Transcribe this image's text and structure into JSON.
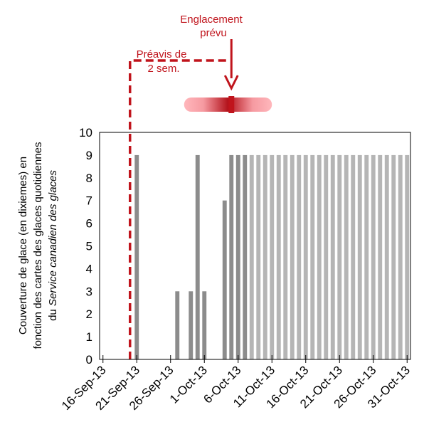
{
  "chart_data": {
    "type": "bar",
    "ylabel": {
      "line1": "Couverture de glace (en dixiemes) en",
      "line2": "fonction des cartes des glaces quotidiennes",
      "line3_prefix": "du ",
      "line3_italic": "Service canadien des glaces"
    },
    "ylim": [
      0,
      10
    ],
    "yticks": [
      "0",
      "1",
      "2",
      "3",
      "4",
      "5",
      "6",
      "7",
      "8",
      "9",
      "10"
    ],
    "x_start": "16-Sep-13",
    "x_end": "31-Oct-13",
    "xtick_labels": [
      "16-Sep-13",
      "21-Sep-13",
      "26-Sep-13",
      "1-Oct-13",
      "6-Oct-13",
      "11-Oct-13",
      "16-Oct-13",
      "21-Oct-13",
      "26-Oct-13",
      "31-Oct-13"
    ],
    "bars": [
      {
        "date": "21-Sep-13",
        "value": 9,
        "shade": "observed"
      },
      {
        "date": "27-Sep-13",
        "value": 3,
        "shade": "observed"
      },
      {
        "date": "29-Sep-13",
        "value": 3,
        "shade": "observed"
      },
      {
        "date": "30-Sep-13",
        "value": 9,
        "shade": "observed"
      },
      {
        "date": "1-Oct-13",
        "value": 3,
        "shade": "observed"
      },
      {
        "date": "4-Oct-13",
        "value": 7,
        "shade": "observed"
      },
      {
        "date": "5-Oct-13",
        "value": 9,
        "shade": "observed"
      },
      {
        "date": "6-Oct-13",
        "value": 9,
        "shade": "observed"
      },
      {
        "date": "7-Oct-13",
        "value": 9,
        "shade": "observed"
      },
      {
        "date": "8-Oct-13",
        "value": 9,
        "shade": "light"
      },
      {
        "date": "9-Oct-13",
        "value": 9,
        "shade": "light"
      },
      {
        "date": "10-Oct-13",
        "value": 9,
        "shade": "light"
      },
      {
        "date": "11-Oct-13",
        "value": 9,
        "shade": "light"
      },
      {
        "date": "12-Oct-13",
        "value": 9,
        "shade": "light"
      },
      {
        "date": "13-Oct-13",
        "value": 9,
        "shade": "light"
      },
      {
        "date": "14-Oct-13",
        "value": 9,
        "shade": "light"
      },
      {
        "date": "15-Oct-13",
        "value": 9,
        "shade": "light"
      },
      {
        "date": "16-Oct-13",
        "value": 9,
        "shade": "light"
      },
      {
        "date": "17-Oct-13",
        "value": 9,
        "shade": "light"
      },
      {
        "date": "18-Oct-13",
        "value": 9,
        "shade": "light"
      },
      {
        "date": "19-Oct-13",
        "value": 9,
        "shade": "light"
      },
      {
        "date": "20-Oct-13",
        "value": 9,
        "shade": "light"
      },
      {
        "date": "21-Oct-13",
        "value": 9,
        "shade": "light"
      },
      {
        "date": "22-Oct-13",
        "value": 9,
        "shade": "light"
      },
      {
        "date": "23-Oct-13",
        "value": 9,
        "shade": "light"
      },
      {
        "date": "24-Oct-13",
        "value": 9,
        "shade": "light"
      },
      {
        "date": "25-Oct-13",
        "value": 9,
        "shade": "light"
      },
      {
        "date": "26-Oct-13",
        "value": 9,
        "shade": "light"
      },
      {
        "date": "27-Oct-13",
        "value": 9,
        "shade": "light"
      },
      {
        "date": "28-Oct-13",
        "value": 9,
        "shade": "light"
      },
      {
        "date": "29-Oct-13",
        "value": 9,
        "shade": "light"
      },
      {
        "date": "30-Oct-13",
        "value": 9,
        "shade": "light"
      },
      {
        "date": "31-Oct-13",
        "value": 9,
        "shade": "light"
      }
    ],
    "colors": {
      "observed": "#8c8c8c",
      "light": "#b5b5b5",
      "annotation": "#c0141c"
    },
    "annotations": {
      "notice_date": "20-Sep-13",
      "notice_label_line1": "Préavis de",
      "notice_label_line2": "2 sem.",
      "freeze_date": "5-Oct-13",
      "freeze_label_line1": "Englacement",
      "freeze_label_line2": "prévu",
      "uncertainty_start": "28-Sep-13",
      "uncertainty_end": "11-Oct-13"
    }
  }
}
